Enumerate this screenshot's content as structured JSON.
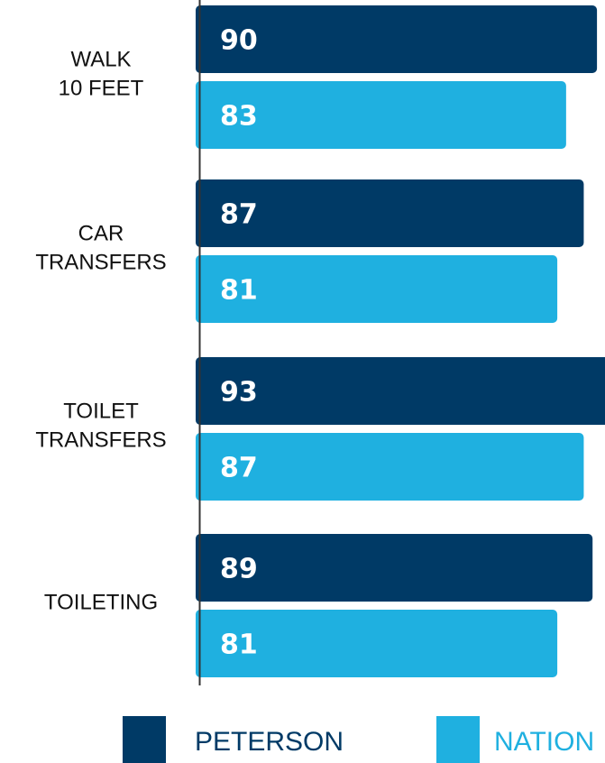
{
  "chart_data": {
    "type": "bar",
    "orientation": "horizontal",
    "categories": [
      [
        "WALK",
        "10 FEET"
      ],
      [
        "CAR",
        "TRANSFERS"
      ],
      [
        "TOILET",
        "TRANSFERS"
      ],
      [
        "TOILETING"
      ]
    ],
    "series": [
      {
        "name": "PETERSON",
        "values": [
          90,
          87,
          93,
          89
        ],
        "color": "#003a66"
      },
      {
        "name": "NATION",
        "values": [
          83,
          81,
          87,
          81
        ],
        "color": "#1fb0e0"
      }
    ],
    "xlim": [
      0,
      100
    ],
    "grid": false,
    "legend_position": "bottom"
  }
}
